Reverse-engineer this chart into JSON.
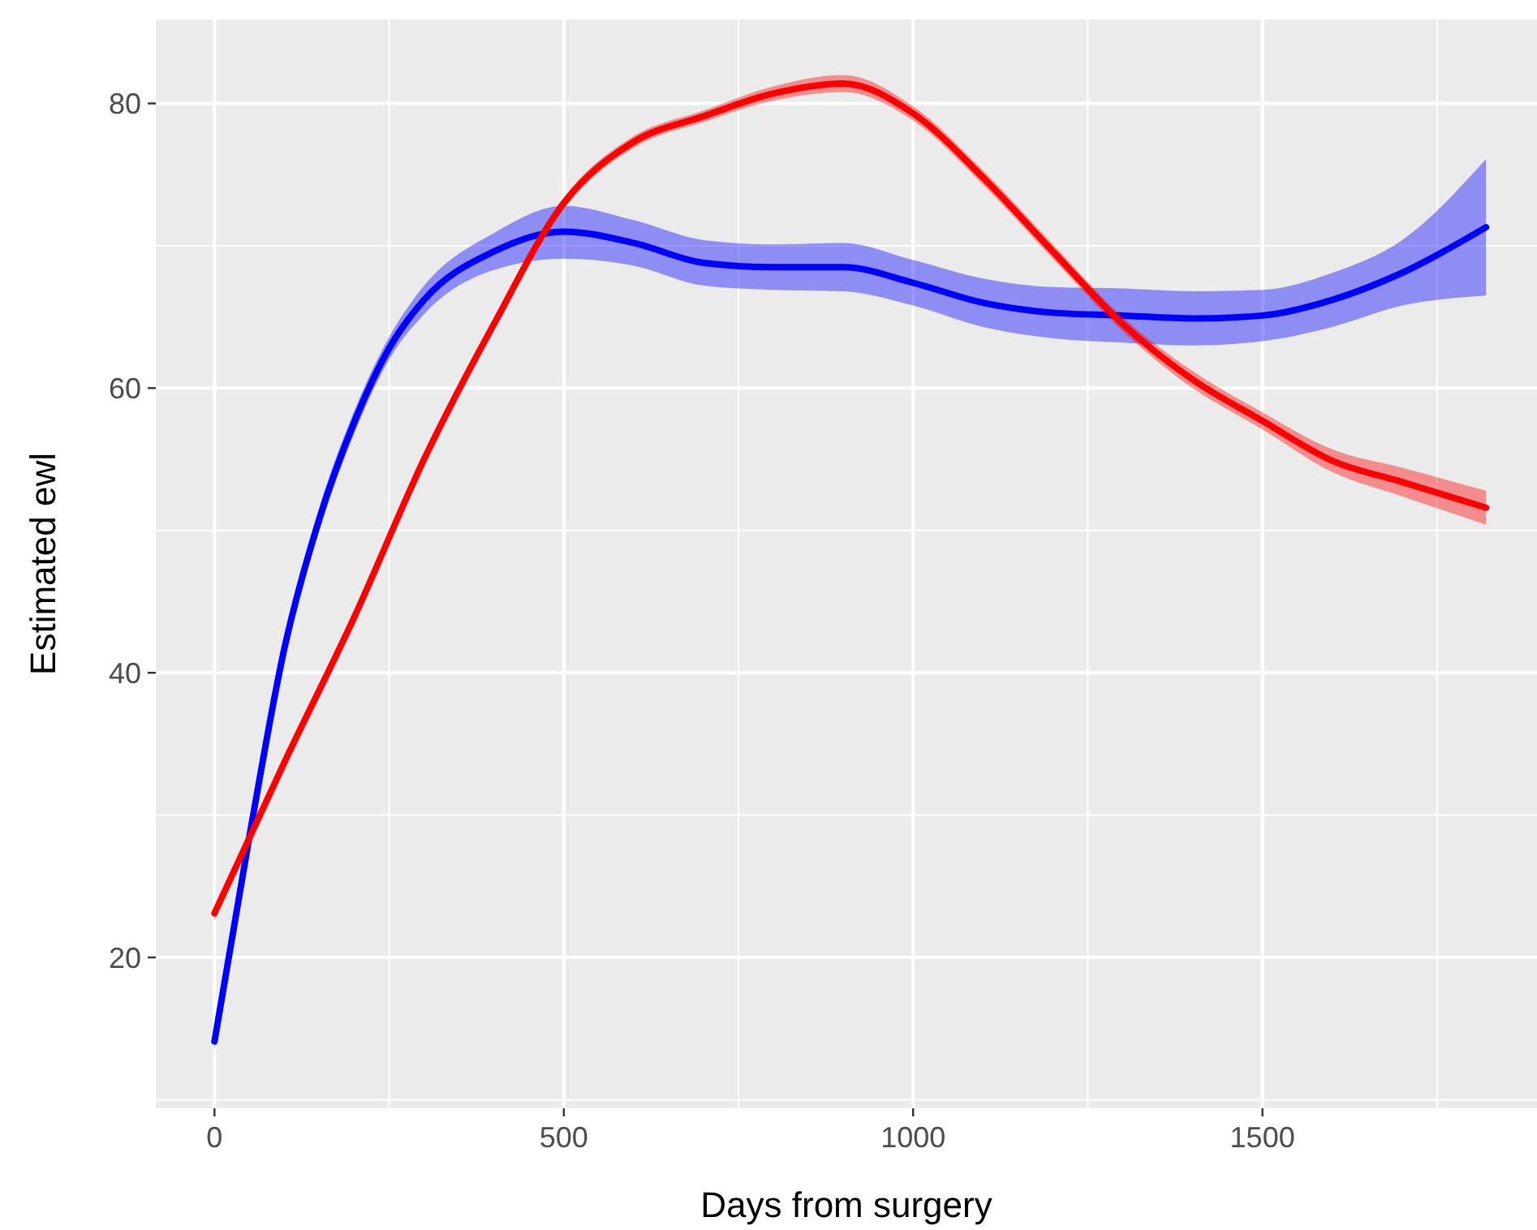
{
  "chart_data": {
    "type": "line",
    "xlabel": "Days from surgery",
    "ylabel": "Estimated ewl",
    "xlim": [
      -84,
      1893
    ],
    "ylim": [
      9.4,
      85.9
    ],
    "xticks": [
      0,
      500,
      1000,
      1500
    ],
    "yticks": [
      20,
      40,
      60,
      80
    ],
    "grid": true,
    "marker": "none",
    "line_style": "solid",
    "series": [
      {
        "color": "#0000ff",
        "x": [
          0,
          50,
          100,
          150,
          200,
          250,
          300,
          400,
          500,
          600,
          700,
          800,
          900,
          1000,
          1100,
          1200,
          1300,
          1400,
          1500,
          1600,
          1700,
          1820
        ],
        "values": [
          14.1,
          28.5,
          41.7,
          50.8,
          57.6,
          62.8,
          66.2,
          69.6,
          71,
          70.2,
          68.8,
          68.5,
          68.5,
          67.4,
          66,
          65.3,
          65.1,
          64.9,
          65.1,
          66.2,
          68.1,
          71.3
        ],
        "lower": [
          13.5,
          27.8,
          41,
          50,
          56.8,
          62,
          65.2,
          68.3,
          69.1,
          68.6,
          67.2,
          66.9,
          66.8,
          65.8,
          64.3,
          63.5,
          63.2,
          63,
          63.3,
          64.3,
          65.8,
          66.5
        ],
        "upper": [
          14.7,
          29.2,
          42.4,
          51.6,
          58.4,
          63.6,
          67.2,
          70.9,
          72.8,
          71.8,
          70.4,
          70.1,
          70.2,
          69,
          67.7,
          67.1,
          67,
          66.8,
          66.9,
          68.1,
          70.4,
          76.1
        ]
      },
      {
        "color": "#ff0000",
        "x": [
          0,
          100,
          200,
          300,
          400,
          500,
          600,
          700,
          800,
          900,
          1000,
          1100,
          1200,
          1300,
          1400,
          1500,
          1600,
          1700,
          1820
        ],
        "values": [
          23.1,
          33.7,
          43.9,
          55,
          64.5,
          73,
          77.3,
          79.1,
          80.7,
          81.4,
          79.3,
          74.8,
          69.6,
          64.5,
          60.6,
          57.7,
          54.9,
          53.4,
          51.6
        ],
        "lower": [
          22.6,
          33.3,
          43.5,
          54.6,
          64.1,
          72.6,
          76.9,
          78.7,
          80.2,
          80.8,
          78.8,
          74.3,
          69.1,
          64,
          60,
          57.1,
          54.1,
          52.4,
          50.4
        ],
        "upper": [
          23.6,
          34.1,
          44.3,
          55.4,
          64.9,
          73.4,
          77.7,
          79.5,
          81.2,
          82,
          79.8,
          75.3,
          70.1,
          65,
          61.2,
          58.3,
          55.7,
          54.4,
          52.8
        ]
      }
    ]
  }
}
